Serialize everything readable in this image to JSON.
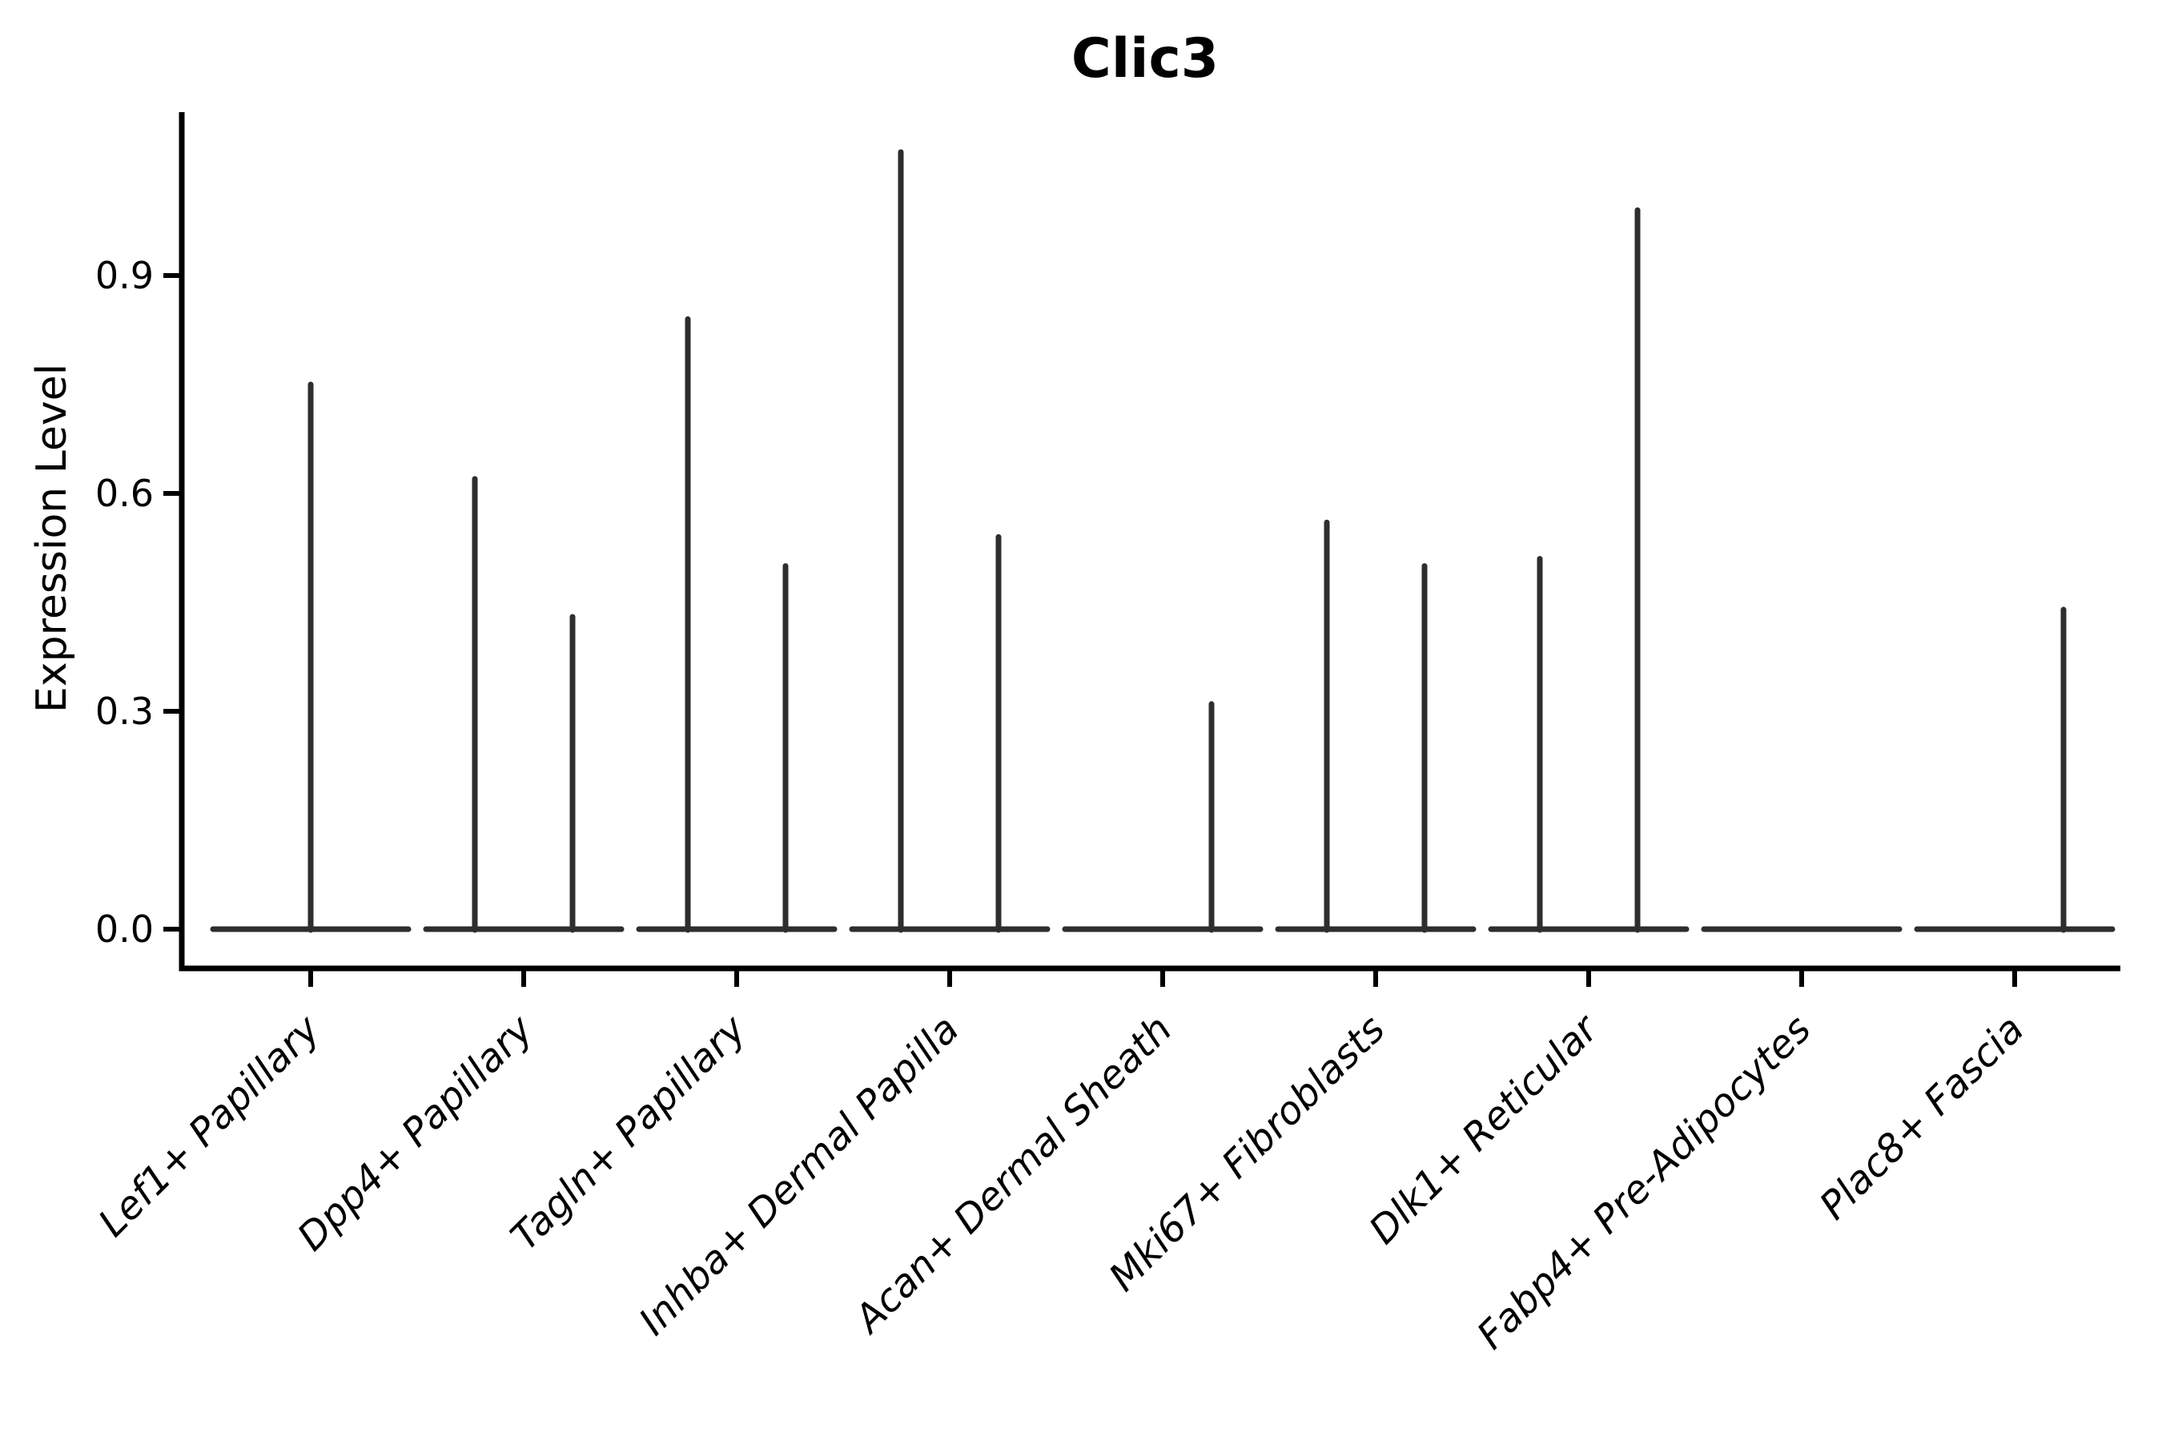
{
  "chart_data": {
    "type": "violin",
    "title": "Clic3",
    "xlabel": "",
    "ylabel": "Expression Level",
    "ytick_labels": [
      "0.0",
      "0.3",
      "0.6",
      "0.9"
    ],
    "ytick_values": [
      0.0,
      0.3,
      0.6,
      0.9
    ],
    "ylim": [
      0.0,
      1.13
    ],
    "grid": false,
    "legend": "none",
    "background_color": "#ffffff",
    "violin_color": "#2e2e2e",
    "axis_color": "#000000",
    "shape_note": "Each category shows a violin collapsed to a flat lens at expression 0 with thin vertical density spikes reaching the maximum expression; categories with two sub-violins have spikes left and right of the category center, single sub-violins are centered or right-shifted.",
    "categories": [
      {
        "label": "Lef1+ Papillary",
        "violins": [
          {
            "position": "center",
            "max_expression": 0.75
          }
        ]
      },
      {
        "label": "Dpp4+ Papillary",
        "violins": [
          {
            "position": "left",
            "max_expression": 0.62
          },
          {
            "position": "right",
            "max_expression": 0.43
          }
        ]
      },
      {
        "label": "Tagln+ Papillary",
        "violins": [
          {
            "position": "left",
            "max_expression": 0.84
          },
          {
            "position": "right",
            "max_expression": 0.5
          }
        ]
      },
      {
        "label": "Inhba+ Dermal Papilla",
        "violins": [
          {
            "position": "left",
            "max_expression": 1.07
          },
          {
            "position": "right",
            "max_expression": 0.54
          }
        ]
      },
      {
        "label": "Acan+ Dermal Sheath",
        "violins": [
          {
            "position": "right",
            "max_expression": 0.31
          }
        ]
      },
      {
        "label": "Mki67+ Fibroblasts",
        "violins": [
          {
            "position": "left",
            "max_expression": 0.56
          },
          {
            "position": "right",
            "max_expression": 0.5
          }
        ]
      },
      {
        "label": "Dlk1+ Reticular",
        "violins": [
          {
            "position": "left",
            "max_expression": 0.51
          },
          {
            "position": "right",
            "max_expression": 0.99
          }
        ]
      },
      {
        "label": "Fabp4+ Pre-Adipocytes",
        "violins": []
      },
      {
        "label": "Plac8+ Fascia",
        "violins": [
          {
            "position": "right",
            "max_expression": 0.44
          }
        ]
      }
    ]
  }
}
